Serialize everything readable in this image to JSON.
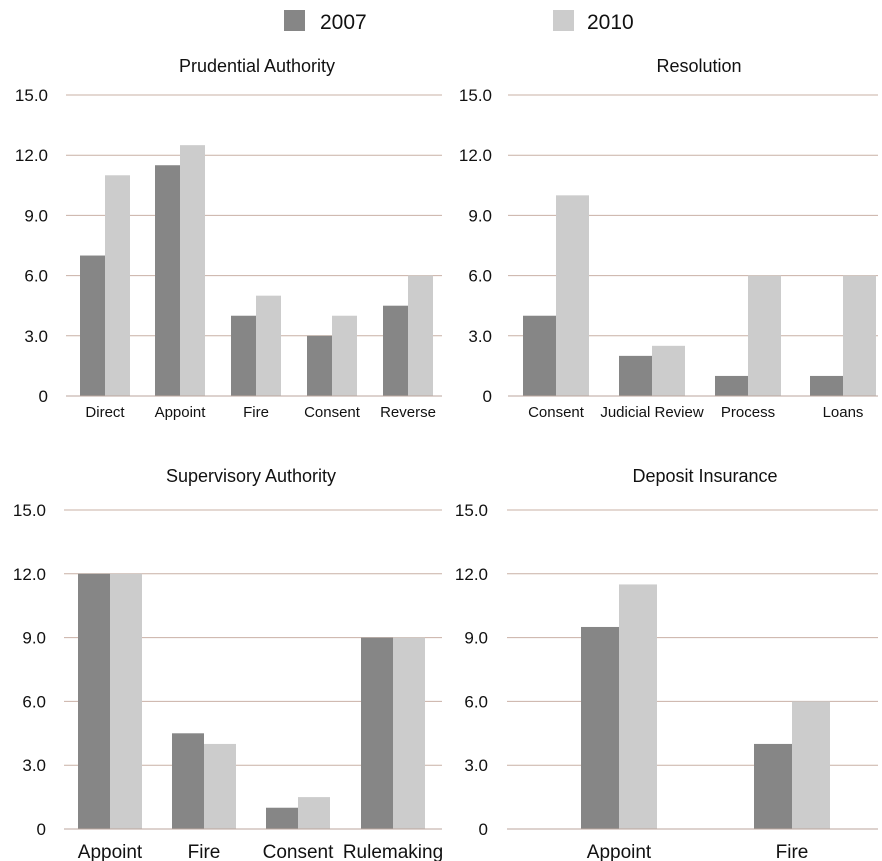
{
  "legend": [
    {
      "label": "2007",
      "color": "#868686"
    },
    {
      "label": "2010",
      "color": "#cccccc"
    }
  ],
  "colors": {
    "grid": "#c9b1a6",
    "axis": "#bba69c"
  },
  "chart_data": [
    {
      "type": "bar",
      "title": "Prudential Authority",
      "categories": [
        "Direct",
        "Appoint",
        "Fire",
        "Consent",
        "Reverse"
      ],
      "series": [
        {
          "name": "2007",
          "values": [
            7.0,
            11.5,
            4.0,
            3.0,
            4.5
          ]
        },
        {
          "name": "2010",
          "values": [
            11.0,
            12.5,
            5.0,
            4.0,
            6.0
          ]
        }
      ],
      "yticks": [
        "0",
        "3.0",
        "6.0",
        "9.0",
        "12.0",
        "15.0"
      ],
      "ylim": [
        0,
        15
      ],
      "grid": true
    },
    {
      "type": "bar",
      "title": "Resolution",
      "categories": [
        "Consent",
        "Judicial Review",
        "Process",
        "Loans"
      ],
      "series": [
        {
          "name": "2007",
          "values": [
            4.0,
            2.0,
            1.0,
            1.0
          ]
        },
        {
          "name": "2010",
          "values": [
            10.0,
            2.5,
            6.0,
            6.0
          ]
        }
      ],
      "yticks": [
        "0",
        "3.0",
        "6.0",
        "9.0",
        "12.0",
        "15.0"
      ],
      "ylim": [
        0,
        15
      ],
      "grid": true
    },
    {
      "type": "bar",
      "title": "Supervisory Authority",
      "categories": [
        "Appoint",
        "Fire",
        "Consent",
        "Rulemaking"
      ],
      "series": [
        {
          "name": "2007",
          "values": [
            12.0,
            4.5,
            1.0,
            9.0
          ]
        },
        {
          "name": "2010",
          "values": [
            12.0,
            4.0,
            1.5,
            9.0
          ]
        }
      ],
      "yticks": [
        "0",
        "3.0",
        "6.0",
        "9.0",
        "12.0",
        "15.0"
      ],
      "ylim": [
        0,
        15
      ],
      "grid": true
    },
    {
      "type": "bar",
      "title": "Deposit Insurance",
      "categories": [
        "Appoint",
        "Fire"
      ],
      "series": [
        {
          "name": "2007",
          "values": [
            9.5,
            4.0
          ]
        },
        {
          "name": "2010",
          "values": [
            11.5,
            6.0
          ]
        }
      ],
      "yticks": [
        "0",
        "3.0",
        "6.0",
        "9.0",
        "12.0",
        "15.0"
      ],
      "ylim": [
        0,
        15
      ],
      "grid": true
    }
  ]
}
